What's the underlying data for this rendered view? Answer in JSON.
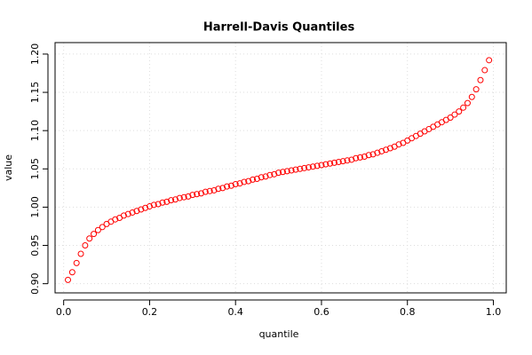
{
  "chart_data": {
    "type": "scatter",
    "title": "Harrell-Davis Quantiles",
    "x_label": "quantile",
    "y_label": "value",
    "color": "#ff0000",
    "grid": true,
    "xlim": [
      -0.02,
      1.03
    ],
    "ylim": [
      0.888,
      1.215
    ],
    "xticks": [
      {
        "value": 0,
        "label": "0.0"
      },
      0.2,
      0.4,
      0.6,
      0.8,
      {
        "value": 1,
        "label": "1.0"
      }
    ],
    "yticks": [
      {
        "value": 0.9,
        "label": "0.90"
      },
      0.95,
      {
        "value": 1,
        "label": "1.00"
      },
      1.05,
      {
        "value": 1.1,
        "label": "1.10"
      },
      1.15,
      {
        "value": 1.2,
        "label": "1.20"
      }
    ],
    "x": [
      0.01,
      0.02,
      0.03,
      0.04,
      0.05,
      0.06,
      0.07,
      0.08,
      0.09,
      0.1,
      0.11,
      0.12,
      0.13,
      0.14,
      0.15,
      0.16,
      0.17,
      0.18,
      0.19,
      0.2,
      0.21,
      0.22,
      0.23,
      0.24,
      0.25,
      0.26,
      0.27,
      0.28,
      0.29,
      0.3,
      0.31,
      0.32,
      0.33,
      0.34,
      0.35,
      0.36,
      0.37,
      0.38,
      0.39,
      0.4,
      0.41,
      0.42,
      0.43,
      0.44,
      0.45,
      0.46,
      0.47,
      0.48,
      0.49,
      0.5,
      0.51,
      0.52,
      0.53,
      0.54,
      0.55,
      0.56,
      0.57,
      0.58,
      0.59,
      0.6,
      0.61,
      0.62,
      0.63,
      0.64,
      0.65,
      0.66,
      0.67,
      0.68,
      0.69,
      0.7,
      0.71,
      0.72,
      0.73,
      0.74,
      0.75,
      0.76,
      0.77,
      0.78,
      0.79,
      0.8,
      0.81,
      0.82,
      0.83,
      0.84,
      0.85,
      0.86,
      0.87,
      0.88,
      0.89,
      0.9,
      0.91,
      0.92,
      0.93,
      0.94,
      0.95,
      0.96,
      0.97,
      0.98,
      0.99
    ],
    "values": [
      0.905,
      0.915,
      0.927,
      0.939,
      0.95,
      0.959,
      0.965,
      0.97,
      0.974,
      0.978,
      0.981,
      0.984,
      0.986,
      0.989,
      0.991,
      0.993,
      0.995,
      0.997,
      0.999,
      1.001,
      1.003,
      1.004,
      1.006,
      1.007,
      1.009,
      1.01,
      1.012,
      1.013,
      1.014,
      1.016,
      1.017,
      1.018,
      1.02,
      1.021,
      1.022,
      1.024,
      1.025,
      1.027,
      1.028,
      1.03,
      1.031,
      1.033,
      1.034,
      1.036,
      1.037,
      1.039,
      1.04,
      1.042,
      1.043,
      1.045,
      1.046,
      1.047,
      1.048,
      1.049,
      1.05,
      1.051,
      1.052,
      1.053,
      1.054,
      1.055,
      1.056,
      1.057,
      1.058,
      1.059,
      1.06,
      1.061,
      1.062,
      1.064,
      1.065,
      1.066,
      1.068,
      1.069,
      1.071,
      1.073,
      1.075,
      1.077,
      1.079,
      1.082,
      1.084,
      1.087,
      1.09,
      1.093,
      1.096,
      1.099,
      1.102,
      1.105,
      1.108,
      1.111,
      1.114,
      1.117,
      1.121,
      1.125,
      1.13,
      1.136,
      1.144,
      1.154,
      1.166,
      1.179,
      1.192
    ]
  }
}
